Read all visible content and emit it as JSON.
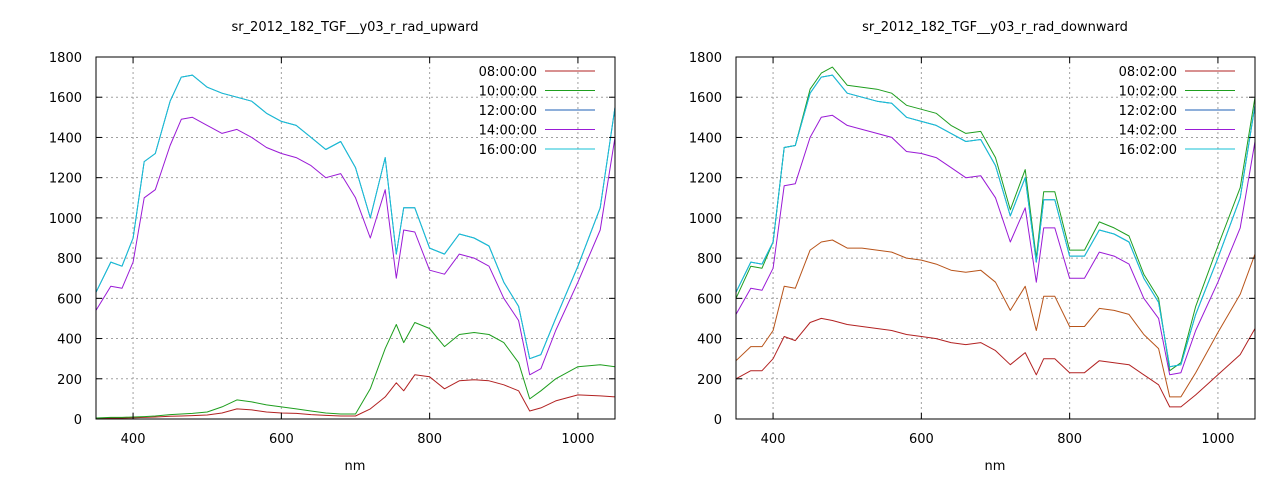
{
  "chart_data": [
    {
      "type": "line",
      "title": "sr_2012_182_TGF__y03_r_rad_upward",
      "xlabel": "nm",
      "ylabel": "",
      "xlim": [
        350,
        1050
      ],
      "ylim": [
        0,
        1800
      ],
      "xticks": [
        "400",
        "600",
        "800",
        "1000"
      ],
      "xtick_values": [
        400,
        600,
        800,
        1000
      ],
      "yticks": [
        "0",
        "200",
        "400",
        "600",
        "800",
        "1000",
        "1200",
        "1400",
        "1600",
        "1800"
      ],
      "ytick_values": [
        0,
        200,
        400,
        600,
        800,
        1000,
        1200,
        1400,
        1600,
        1800
      ],
      "grid": true,
      "legend_position": "top-right",
      "x": [
        350,
        370,
        385,
        400,
        415,
        430,
        450,
        465,
        480,
        500,
        520,
        540,
        560,
        580,
        600,
        620,
        640,
        660,
        680,
        700,
        720,
        740,
        755,
        765,
        780,
        800,
        820,
        840,
        860,
        880,
        900,
        920,
        935,
        950,
        970,
        1000,
        1030,
        1050
      ],
      "series": [
        {
          "name": "08:00:00",
          "color": "#b22222",
          "values": [
            3,
            5,
            5,
            6,
            8,
            10,
            14,
            15,
            17,
            20,
            30,
            50,
            45,
            35,
            30,
            28,
            22,
            18,
            15,
            15,
            50,
            110,
            180,
            140,
            220,
            210,
            150,
            190,
            195,
            190,
            170,
            140,
            40,
            55,
            90,
            120,
            115,
            110
          ]
        },
        {
          "name": "10:00:00",
          "color": "#1e9e1e",
          "values": [
            5,
            8,
            8,
            10,
            12,
            15,
            22,
            25,
            28,
            35,
            60,
            95,
            85,
            70,
            60,
            50,
            40,
            30,
            25,
            25,
            150,
            350,
            470,
            380,
            480,
            450,
            360,
            420,
            430,
            420,
            380,
            280,
            100,
            140,
            200,
            260,
            270,
            260
          ]
        },
        {
          "name": "12:00:00",
          "color": "#1e5fb4",
          "values": [
            630,
            780,
            760,
            900,
            1280,
            1320,
            1580,
            1700,
            1710,
            1650,
            1620,
            1600,
            1580,
            1520,
            1480,
            1460,
            1400,
            1340,
            1380,
            1250,
            1000,
            1300,
            820,
            1050,
            1050,
            850,
            820,
            920,
            900,
            860,
            680,
            560,
            300,
            320,
            500,
            760,
            1050,
            1550
          ]
        },
        {
          "name": "14:00:00",
          "color": "#9a1ad6",
          "values": [
            540,
            660,
            650,
            780,
            1100,
            1140,
            1360,
            1490,
            1500,
            1460,
            1420,
            1440,
            1400,
            1350,
            1320,
            1300,
            1260,
            1200,
            1220,
            1100,
            900,
            1140,
            700,
            940,
            930,
            740,
            720,
            820,
            800,
            760,
            600,
            490,
            220,
            250,
            440,
            680,
            940,
            1400
          ]
        },
        {
          "name": "16:00:00",
          "color": "#16c2d6",
          "values": [
            630,
            780,
            760,
            900,
            1280,
            1320,
            1580,
            1700,
            1710,
            1650,
            1620,
            1600,
            1580,
            1520,
            1480,
            1460,
            1400,
            1340,
            1380,
            1250,
            1000,
            1300,
            820,
            1050,
            1050,
            850,
            820,
            920,
            900,
            860,
            680,
            560,
            300,
            320,
            500,
            760,
            1050,
            1550
          ]
        }
      ]
    },
    {
      "type": "line",
      "title": "sr_2012_182_TGF__y03_r_rad_downward",
      "xlabel": "nm",
      "ylabel": "",
      "xlim": [
        350,
        1050
      ],
      "ylim": [
        0,
        1800
      ],
      "xticks": [
        "400",
        "600",
        "800",
        "1000"
      ],
      "xtick_values": [
        400,
        600,
        800,
        1000
      ],
      "yticks": [
        "0",
        "200",
        "400",
        "600",
        "800",
        "1000",
        "1200",
        "1400",
        "1600",
        "1800"
      ],
      "ytick_values": [
        0,
        200,
        400,
        600,
        800,
        1000,
        1200,
        1400,
        1600,
        1800
      ],
      "grid": true,
      "legend_position": "top-right",
      "x": [
        350,
        370,
        385,
        400,
        415,
        430,
        450,
        465,
        480,
        500,
        520,
        540,
        560,
        580,
        600,
        620,
        640,
        660,
        680,
        700,
        720,
        740,
        755,
        765,
        780,
        800,
        820,
        840,
        860,
        880,
        900,
        920,
        935,
        950,
        970,
        1000,
        1030,
        1050
      ],
      "series": [
        {
          "name": "08:02:00",
          "color": "#b22222",
          "values": [
            200,
            240,
            240,
            300,
            410,
            390,
            480,
            500,
            490,
            470,
            460,
            450,
            440,
            420,
            410,
            400,
            380,
            370,
            380,
            340,
            270,
            330,
            220,
            300,
            300,
            230,
            230,
            290,
            280,
            270,
            220,
            170,
            60,
            60,
            120,
            220,
            320,
            450
          ]
        },
        {
          "name": "10:02:00",
          "color": "#1e9e1e",
          "values": [
            600,
            760,
            750,
            880,
            1350,
            1360,
            1640,
            1720,
            1750,
            1660,
            1650,
            1640,
            1620,
            1560,
            1540,
            1520,
            1460,
            1420,
            1430,
            1300,
            1040,
            1240,
            800,
            1130,
            1130,
            840,
            840,
            980,
            950,
            910,
            720,
            600,
            240,
            280,
            560,
            860,
            1150,
            1600
          ]
        },
        {
          "name": "12:02:00",
          "color": "#1e5fb4",
          "values": [
            630,
            780,
            770,
            880,
            1350,
            1360,
            1620,
            1700,
            1710,
            1620,
            1600,
            1580,
            1570,
            1500,
            1480,
            1460,
            1420,
            1380,
            1390,
            1260,
            1010,
            1200,
            780,
            1090,
            1090,
            810,
            810,
            940,
            920,
            880,
            700,
            580,
            260,
            270,
            520,
            800,
            1100,
            1560
          ]
        },
        {
          "name": "14:02:00",
          "color": "#9a1ad6",
          "values": [
            520,
            650,
            640,
            750,
            1160,
            1170,
            1400,
            1500,
            1510,
            1460,
            1440,
            1420,
            1400,
            1330,
            1320,
            1300,
            1250,
            1200,
            1210,
            1100,
            880,
            1050,
            680,
            950,
            950,
            700,
            700,
            830,
            810,
            770,
            600,
            500,
            220,
            230,
            440,
            680,
            950,
            1380
          ]
        },
        {
          "name": "16:02:00",
          "color": "#16c2d6",
          "values": [
            630,
            780,
            770,
            880,
            1350,
            1360,
            1620,
            1700,
            1710,
            1620,
            1600,
            1580,
            1570,
            1500,
            1480,
            1460,
            1420,
            1380,
            1390,
            1260,
            1010,
            1200,
            780,
            1090,
            1090,
            810,
            810,
            940,
            920,
            880,
            700,
            580,
            260,
            270,
            520,
            800,
            1100,
            1560
          ]
        },
        {
          "name": "",
          "color": "#b8541a",
          "values": [
            290,
            360,
            360,
            440,
            660,
            650,
            840,
            880,
            890,
            850,
            850,
            840,
            830,
            800,
            790,
            770,
            740,
            730,
            740,
            680,
            540,
            660,
            440,
            610,
            610,
            460,
            460,
            550,
            540,
            520,
            420,
            350,
            110,
            110,
            230,
            430,
            620,
            820
          ]
        }
      ]
    }
  ]
}
